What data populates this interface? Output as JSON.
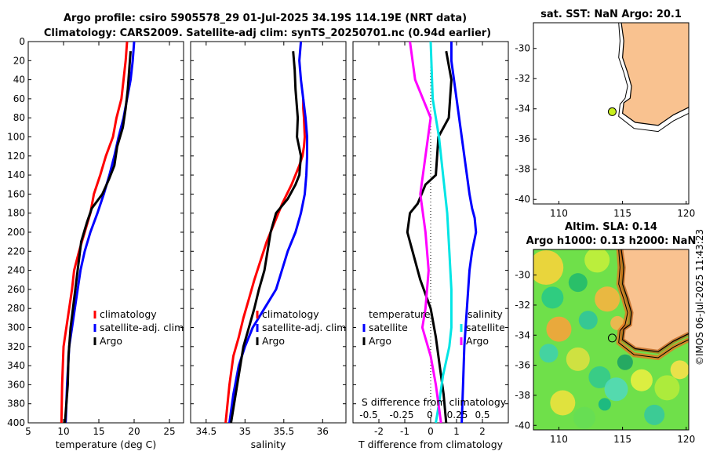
{
  "title_line1": "Argo profile: csiro 5905578_29 01-Jul-2025 34.19S 114.19E (NRT data)",
  "title_line2": "Climatology: CARS2009. Satellite-adj clim: synTS_20250701.nc (0.94d earlier)",
  "watermark": "©IMOS 06-Jul-2025 11:43:23",
  "colors": {
    "climatology": "#ff0000",
    "satellite": "#0000ff",
    "argo": "#000000",
    "s_sat": "#00e5e5",
    "s_argo": "#ff00ff",
    "land": "#f9c290",
    "coast": "#000000",
    "float_marker": "#c8f01e"
  },
  "chart_data": [
    {
      "type": "line",
      "id": "temperature",
      "xlabel": "temperature (deg C)",
      "ylabel": "",
      "xlim": [
        5,
        27
      ],
      "ylim": [
        400,
        0
      ],
      "xticks": [
        5,
        10,
        15,
        20,
        25
      ],
      "yticks": [
        0,
        20,
        40,
        60,
        80,
        100,
        120,
        140,
        160,
        180,
        200,
        220,
        240,
        260,
        280,
        300,
        320,
        340,
        360,
        380,
        400
      ],
      "legend": [
        "climatology",
        "satellite-adj. clim",
        "Argo"
      ],
      "series": [
        {
          "name": "climatology",
          "color": "#ff0000",
          "x": [
            19.0,
            18.8,
            18.5,
            18.2,
            17.5,
            17.0,
            16.0,
            15.2,
            14.3,
            13.8,
            13.0,
            12.2,
            11.5,
            11.2,
            10.8,
            10.4,
            10.0,
            9.8,
            9.7
          ],
          "y": [
            0,
            20,
            40,
            60,
            80,
            100,
            120,
            140,
            160,
            180,
            200,
            220,
            240,
            260,
            280,
            300,
            320,
            360,
            400
          ]
        },
        {
          "name": "satellite-adj. clim",
          "color": "#0000ff",
          "x": [
            20.0,
            19.8,
            19.5,
            19.0,
            18.5,
            17.8,
            17.2,
            16.5,
            15.7,
            14.8,
            13.8,
            13.0,
            12.4,
            12.0,
            11.6,
            11.2,
            10.8,
            10.5,
            10.3
          ],
          "y": [
            0,
            20,
            40,
            60,
            80,
            100,
            120,
            140,
            160,
            180,
            200,
            220,
            240,
            260,
            280,
            300,
            320,
            360,
            400
          ]
        },
        {
          "name": "Argo",
          "color": "#000000",
          "x": [
            19.5,
            19.3,
            19.1,
            18.8,
            18.4,
            17.6,
            17.2,
            16.4,
            15.5,
            14.0,
            13.3,
            12.5,
            12.0,
            11.5,
            11.0,
            10.7,
            10.6,
            10.2
          ],
          "y": [
            10,
            30,
            50,
            70,
            90,
            110,
            130,
            145,
            160,
            175,
            190,
            210,
            240,
            270,
            300,
            330,
            360,
            400
          ]
        }
      ]
    },
    {
      "type": "line",
      "id": "salinity",
      "xlabel": "salinity",
      "ylabel": "",
      "xlim": [
        34.3,
        36.3
      ],
      "ylim": [
        400,
        0
      ],
      "xticks": [
        34.5,
        35,
        35.5,
        36
      ],
      "legend": [
        "climatology",
        "satellite-adj. clim",
        "Argo"
      ],
      "series": [
        {
          "name": "climatology",
          "color": "#ff0000",
          "x": [
            35.75,
            35.75,
            35.76,
            35.77,
            35.76,
            35.74,
            35.7,
            35.6,
            35.48,
            35.38,
            35.28,
            35.2,
            35.12,
            35.05,
            34.98,
            34.92,
            34.85,
            34.8,
            34.75
          ],
          "y": [
            60,
            70,
            80,
            100,
            110,
            120,
            130,
            150,
            170,
            190,
            210,
            230,
            250,
            270,
            290,
            310,
            330,
            360,
            400
          ]
        },
        {
          "name": "satellite-adj. clim",
          "color": "#0000ff",
          "x": [
            35.72,
            35.7,
            35.72,
            35.78,
            35.8,
            35.8,
            35.79,
            35.77,
            35.72,
            35.65,
            35.55,
            35.4,
            35.25,
            35.1,
            35.0,
            34.92,
            34.85,
            34.8
          ],
          "y": [
            0,
            20,
            40,
            80,
            100,
            120,
            140,
            160,
            180,
            200,
            220,
            260,
            280,
            300,
            320,
            340,
            370,
            400
          ]
        },
        {
          "name": "Argo",
          "color": "#000000",
          "x": [
            35.62,
            35.64,
            35.65,
            35.68,
            35.67,
            35.72,
            35.7,
            35.65,
            35.55,
            35.4,
            35.33,
            35.25,
            35.18,
            35.12,
            35.05,
            34.98,
            34.9,
            34.82
          ],
          "y": [
            10,
            30,
            50,
            80,
            100,
            120,
            140,
            150,
            165,
            180,
            200,
            240,
            260,
            280,
            300,
            320,
            360,
            400
          ]
        }
      ]
    },
    {
      "type": "line",
      "id": "difference",
      "xlabel": "T difference from climatology",
      "xlim": [
        -3,
        3
      ],
      "ylim": [
        400,
        0
      ],
      "xticks": [
        -2,
        -1,
        0,
        1,
        2
      ],
      "secondary_xlabel": "S difference from climatology",
      "secondary_xticks": [
        "-0.5",
        "-0.25",
        "0",
        "0.25",
        "0.5"
      ],
      "legend_temperature": {
        "title": "temperature",
        "items": [
          "satellite",
          "Argo"
        ]
      },
      "legend_salinity": {
        "title": "salinity",
        "items": [
          "satellite",
          "Argo"
        ]
      },
      "series": [
        {
          "name": "temperature satellite",
          "color": "#0000ff",
          "x": [
            0.8,
            0.8,
            1.0,
            1.2,
            1.4,
            1.5,
            1.6,
            1.7,
            1.75,
            1.6,
            1.5,
            1.4,
            1.3,
            1.25,
            1.2
          ],
          "y": [
            0,
            20,
            60,
            100,
            140,
            160,
            175,
            185,
            200,
            220,
            240,
            280,
            320,
            360,
            400
          ]
        },
        {
          "name": "temperature Argo",
          "color": "#000000",
          "x": [
            0.6,
            0.8,
            0.7,
            0.3,
            0.2,
            -0.2,
            -0.5,
            -0.8,
            -0.9,
            -0.7,
            -0.4,
            0.0,
            0.2,
            0.35,
            0.5,
            0.6
          ],
          "y": [
            10,
            40,
            80,
            100,
            140,
            150,
            170,
            180,
            200,
            220,
            250,
            280,
            310,
            340,
            370,
            400
          ]
        },
        {
          "name": "salinity satellite",
          "color": "#00e5e5",
          "x": [
            0.0,
            0.02,
            0.08,
            0.12,
            0.16,
            0.18,
            0.2,
            0.2,
            0.18,
            0.12,
            0.08,
            0.05
          ],
          "y": [
            0,
            60,
            100,
            140,
            180,
            220,
            260,
            300,
            320,
            350,
            380,
            400
          ]
        },
        {
          "name": "salinity Argo",
          "color": "#ff00ff",
          "x": [
            -0.2,
            -0.15,
            0.0,
            -0.05,
            -0.1,
            -0.05,
            -0.02,
            -0.05,
            -0.08,
            0.0,
            0.05,
            0.1
          ],
          "y": [
            0,
            40,
            80,
            120,
            160,
            200,
            240,
            280,
            300,
            330,
            360,
            400
          ]
        }
      ]
    },
    {
      "type": "map",
      "id": "sst_map",
      "title": "sat. SST: NaN Argo: 20.1",
      "xlim": [
        108,
        120.2
      ],
      "ylim": [
        -40.3,
        -28.3
      ],
      "xticks": [
        110,
        115,
        120
      ],
      "yticks": [
        -30,
        -32,
        -34,
        -36,
        -38,
        -40
      ],
      "float_lon": 114.19,
      "float_lat": -34.19
    },
    {
      "type": "map",
      "id": "sla_map",
      "title_line1": "Altim. SLA: 0.14",
      "title_line2": "Argo h1000: 0.13 h2000: NaN",
      "xlim": [
        108,
        120.2
      ],
      "ylim": [
        -40.3,
        -28.3
      ],
      "xticks": [
        110,
        115,
        120
      ],
      "yticks": [
        -30,
        -32,
        -34,
        -36,
        -38,
        -40
      ],
      "float_lon": 114.19,
      "float_lat": -34.19
    }
  ]
}
